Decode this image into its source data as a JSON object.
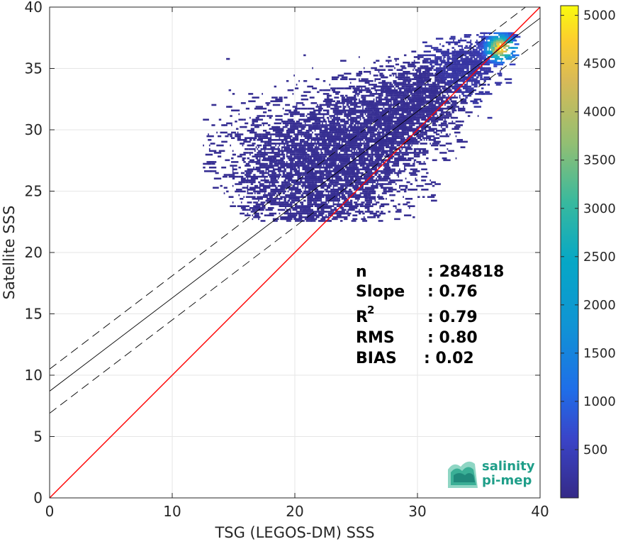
{
  "chart_data": {
    "type": "heatmap",
    "title": "",
    "xlabel": "TSG (LEGOS-DM) SSS",
    "ylabel": "Satellite SSS",
    "xlim": [
      0,
      40
    ],
    "ylim": [
      0,
      40
    ],
    "x_ticks": [
      "0",
      "10",
      "20",
      "30",
      "40"
    ],
    "y_ticks": [
      "0",
      "5",
      "10",
      "15",
      "20",
      "25",
      "30",
      "35",
      "40"
    ],
    "grid": true,
    "colormap": "parula",
    "colorbar": {
      "range": [
        0,
        5100
      ],
      "ticks": [
        "500",
        "1000",
        "1500",
        "2000",
        "2500",
        "3000",
        "3500",
        "4000",
        "4500",
        "5000"
      ]
    },
    "identity_line": {
      "color": "#ff0000",
      "points": [
        [
          0,
          0
        ],
        [
          40,
          40
        ]
      ]
    },
    "regression_line": {
      "color": "#000000",
      "intercept": 8.7,
      "slope": 0.76
    },
    "confidence_band": {
      "style": "dashed",
      "offset": 1.8
    },
    "density_region": {
      "x_range": [
        12.5,
        38
      ],
      "y_range": [
        22.5,
        37.8
      ],
      "peak": {
        "x": 36.5,
        "y": 36.5,
        "count": 5000
      },
      "spread_note": "dense cluster near 33-38; sparse points down to 22.5"
    },
    "stats": [
      {
        "label": "n",
        "value": ": 284818"
      },
      {
        "label": "Slope",
        "value": ": 0.76"
      },
      {
        "label": "R",
        "sup": "2",
        "value": ": 0.79"
      },
      {
        "label": "RMS",
        "value": ": 0.80"
      },
      {
        "label": "BIAS",
        "value": ": 0.02"
      }
    ]
  },
  "logo": {
    "line1": "salinity",
    "line2": "pi-mep"
  },
  "colors": {
    "identity": "#ff0000",
    "regression": "#000000",
    "low": "#3e26a8",
    "mid": "#1cb8b1",
    "high": "#f9fb0e"
  }
}
